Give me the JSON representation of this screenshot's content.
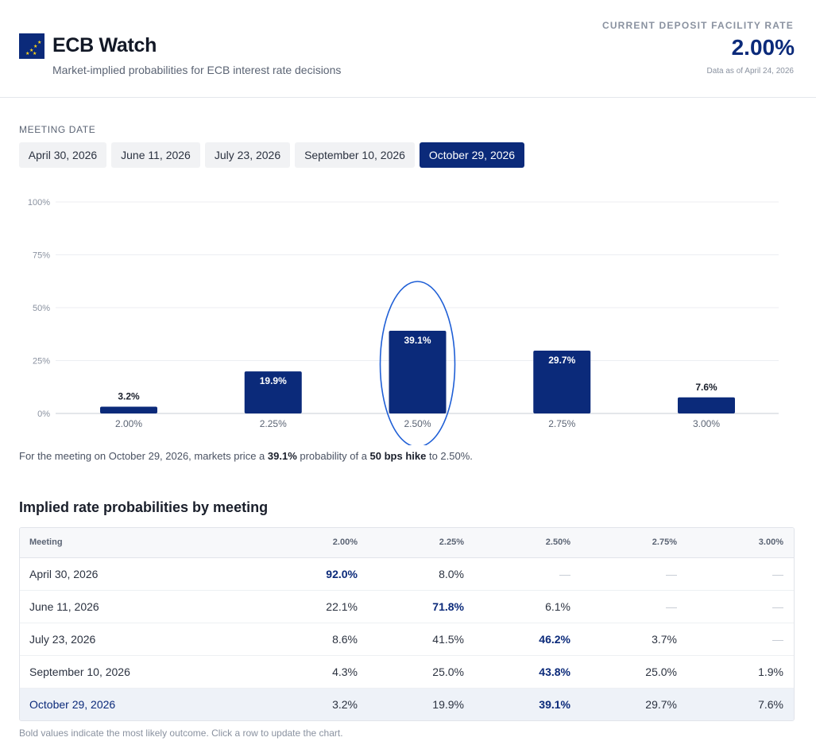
{
  "header": {
    "title": "ECB Watch",
    "subtitle": "Market-implied probabilities for ECB interest rate decisions",
    "rate_label": "CURRENT DEPOSIT FACILITY RATE",
    "rate_value": "2.00%",
    "as_of": "Data as of April 24, 2026",
    "logo_icon": "eu-flag-icon",
    "brand_color": "#0b2a7a"
  },
  "meeting_selector": {
    "label": "MEETING DATE",
    "tabs": [
      {
        "label": "April 30, 2026",
        "active": false
      },
      {
        "label": "June 11, 2026",
        "active": false
      },
      {
        "label": "July 23, 2026",
        "active": false
      },
      {
        "label": "September 10, 2026",
        "active": false
      },
      {
        "label": "October 29, 2026",
        "active": true
      }
    ]
  },
  "chart_data": {
    "type": "bar",
    "categories": [
      "2.00%",
      "2.25%",
      "2.50%",
      "2.75%",
      "3.00%"
    ],
    "values": [
      3.2,
      19.9,
      39.1,
      29.7,
      7.6
    ],
    "value_labels": [
      "3.2%",
      "19.9%",
      "39.1%",
      "29.7%",
      "7.6%"
    ],
    "yticks": [
      "0%",
      "25%",
      "50%",
      "75%",
      "100%"
    ],
    "ylim": [
      0,
      100
    ],
    "grid": true,
    "highlighted_category": "2.50%",
    "bar_color": "#0b2a7a",
    "highlight_color": "#1f5fd6"
  },
  "summary": {
    "prefix": "For the meeting on October 29, 2026, markets price a ",
    "probability": "39.1%",
    "middle": " probability of a ",
    "move": "50 bps hike",
    "suffix": " to 2.50%."
  },
  "table": {
    "title": "Implied rate probabilities by meeting",
    "columns": [
      "Meeting",
      "2.00%",
      "2.25%",
      "2.50%",
      "2.75%",
      "3.00%"
    ],
    "rows": [
      {
        "meeting": "April 30, 2026",
        "cells": [
          "92.0%",
          "8.0%",
          "—",
          "—",
          "—"
        ],
        "max_index": 0,
        "selected": false
      },
      {
        "meeting": "June 11, 2026",
        "cells": [
          "22.1%",
          "71.8%",
          "6.1%",
          "—",
          "—"
        ],
        "max_index": 1,
        "selected": false
      },
      {
        "meeting": "July 23, 2026",
        "cells": [
          "8.6%",
          "41.5%",
          "46.2%",
          "3.7%",
          "—"
        ],
        "max_index": 2,
        "selected": false
      },
      {
        "meeting": "September 10, 2026",
        "cells": [
          "4.3%",
          "25.0%",
          "43.8%",
          "25.0%",
          "1.9%"
        ],
        "max_index": 2,
        "selected": false
      },
      {
        "meeting": "October 29, 2026",
        "cells": [
          "3.2%",
          "19.9%",
          "39.1%",
          "29.7%",
          "7.6%"
        ],
        "max_index": 2,
        "selected": true
      }
    ]
  },
  "footnote": "Bold values indicate the most likely outcome. Click a row to update the chart."
}
